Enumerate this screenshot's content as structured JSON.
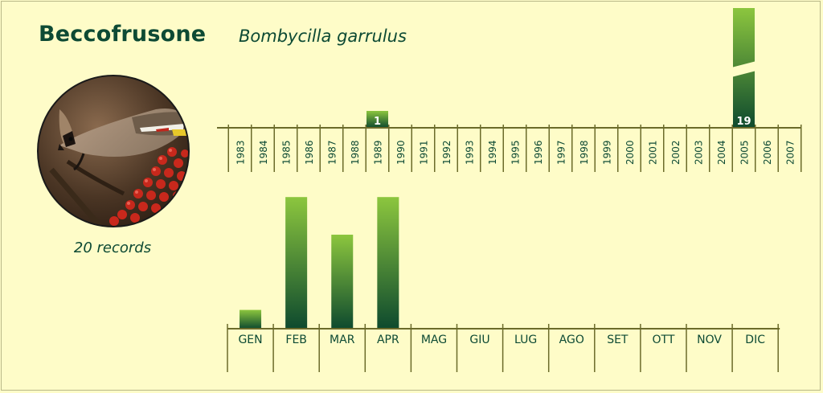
{
  "species": {
    "common_name": "Beccofrusone",
    "scientific_name": "Bombycilla garrulus",
    "records_label": "20 records"
  },
  "photo": {
    "subject": "bohemian waxwing perched over red berries"
  },
  "colors": {
    "background": "#fefcc8",
    "text": "#0d4a34",
    "axis": "#6b6b2a",
    "bar_top": "#8cc63e",
    "bar_bottom": "#0e4a2e"
  },
  "chart_data": [
    {
      "type": "bar",
      "name": "yearly",
      "categories": [
        "1983",
        "1984",
        "1985",
        "1986",
        "1987",
        "1988",
        "1989",
        "1990",
        "1991",
        "1992",
        "1993",
        "1994",
        "1995",
        "1996",
        "1997",
        "1998",
        "1999",
        "2000",
        "2001",
        "2002",
        "2003",
        "2004",
        "2005",
        "2006",
        "2007"
      ],
      "values": [
        0,
        0,
        0,
        0,
        0,
        0,
        1,
        0,
        0,
        0,
        0,
        0,
        0,
        0,
        0,
        0,
        0,
        0,
        0,
        0,
        0,
        0,
        19,
        0,
        0
      ],
      "data_labels": [
        "",
        "",
        "",
        "",
        "",
        "",
        "1",
        "",
        "",
        "",
        "",
        "",
        "",
        "",
        "",
        "",
        "",
        "",
        "",
        "",
        "",
        "",
        "19",
        "",
        ""
      ],
      "axis_break": true
    },
    {
      "type": "bar",
      "name": "monthly",
      "categories": [
        "GEN",
        "FEB",
        "MAR",
        "APR",
        "MAG",
        "GIU",
        "LUG",
        "AGO",
        "SET",
        "OTT",
        "NOV",
        "DIC"
      ],
      "values": [
        1,
        7,
        5,
        7,
        0,
        0,
        0,
        0,
        0,
        0,
        0,
        0
      ]
    }
  ]
}
